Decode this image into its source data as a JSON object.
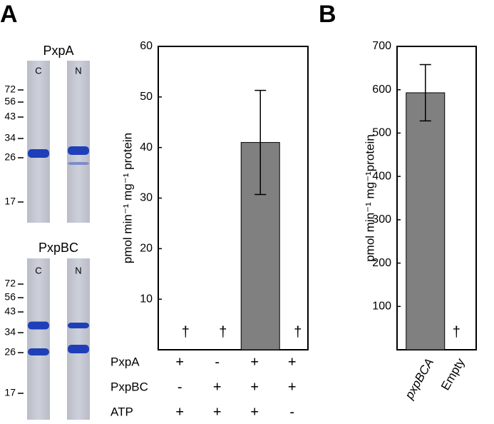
{
  "gels": [
    {
      "title": "PxpA",
      "lanes": [
        "C",
        "N"
      ],
      "markers": [
        72,
        56,
        43,
        34,
        26,
        17
      ]
    },
    {
      "title": "PxpBC",
      "lanes": [
        "C",
        "N"
      ],
      "markers": [
        72,
        56,
        43,
        34,
        26,
        17
      ]
    }
  ],
  "chart_data": [
    {
      "type": "bar",
      "panel": "A",
      "ylabel": "pmol min⁻¹ mg⁻¹ protein",
      "color": "#808080",
      "values": [
        null,
        null,
        41,
        null
      ],
      "errors": [
        null,
        null,
        10.3,
        null
      ],
      "value_labels": [
        "†",
        "†",
        null,
        "†"
      ],
      "conditions": [
        {
          "name": "PxpA",
          "values": [
            "+",
            "-",
            "+",
            "+"
          ]
        },
        {
          "name": "PxpBC",
          "values": [
            "-",
            "+",
            "+",
            "+"
          ]
        },
        {
          "name": "ATP",
          "values": [
            "+",
            "+",
            "+",
            "-"
          ]
        }
      ],
      "ylim": [
        0,
        60
      ],
      "yticks": [
        10,
        20,
        30,
        40,
        50,
        60
      ]
    },
    {
      "type": "bar",
      "panel": "B",
      "ylabel": "pmol min⁻¹ mg⁻¹protein",
      "color": "#808080",
      "categories": [
        "pxpBCA",
        "Empty"
      ],
      "values": [
        593,
        null
      ],
      "errors": [
        65,
        null
      ],
      "value_labels": [
        null,
        "†"
      ],
      "ylim": [
        0,
        700
      ],
      "yticks": [
        100,
        200,
        300,
        400,
        500,
        600,
        700
      ]
    }
  ]
}
